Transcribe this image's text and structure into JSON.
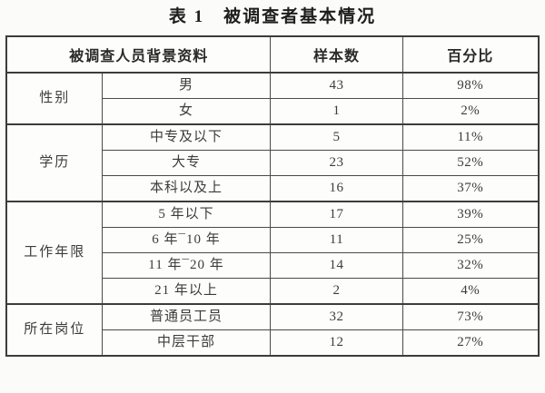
{
  "title": "表 1　被调查者基本情况",
  "table": {
    "headers": {
      "background": "被调查人员背景资料",
      "sample": "样本数",
      "percent": "百分比"
    },
    "groups": [
      {
        "category": "性别",
        "rows": [
          {
            "label": "男",
            "count": "43",
            "percent": "98%"
          },
          {
            "label": "女",
            "count": "1",
            "percent": "2%"
          }
        ]
      },
      {
        "category": "学历",
        "rows": [
          {
            "label": "中专及以下",
            "count": "5",
            "percent": "11%"
          },
          {
            "label": "大专",
            "count": "23",
            "percent": "52%"
          },
          {
            "label": "本科以及上",
            "count": "16",
            "percent": "37%"
          }
        ]
      },
      {
        "category": "工作年限",
        "rows": [
          {
            "label": "5 年以下",
            "count": "17",
            "percent": "39%"
          },
          {
            "label": "6 年¯10 年",
            "count": "11",
            "percent": "25%"
          },
          {
            "label": "11 年¯20 年",
            "count": "14",
            "percent": "32%"
          },
          {
            "label": "21 年以上",
            "count": "2",
            "percent": "4%"
          }
        ]
      },
      {
        "category": "所在岗位",
        "rows": [
          {
            "label": "普通员工员",
            "count": "32",
            "percent": "73%"
          },
          {
            "label": "中层干部",
            "count": "12",
            "percent": "27%"
          }
        ]
      }
    ]
  }
}
